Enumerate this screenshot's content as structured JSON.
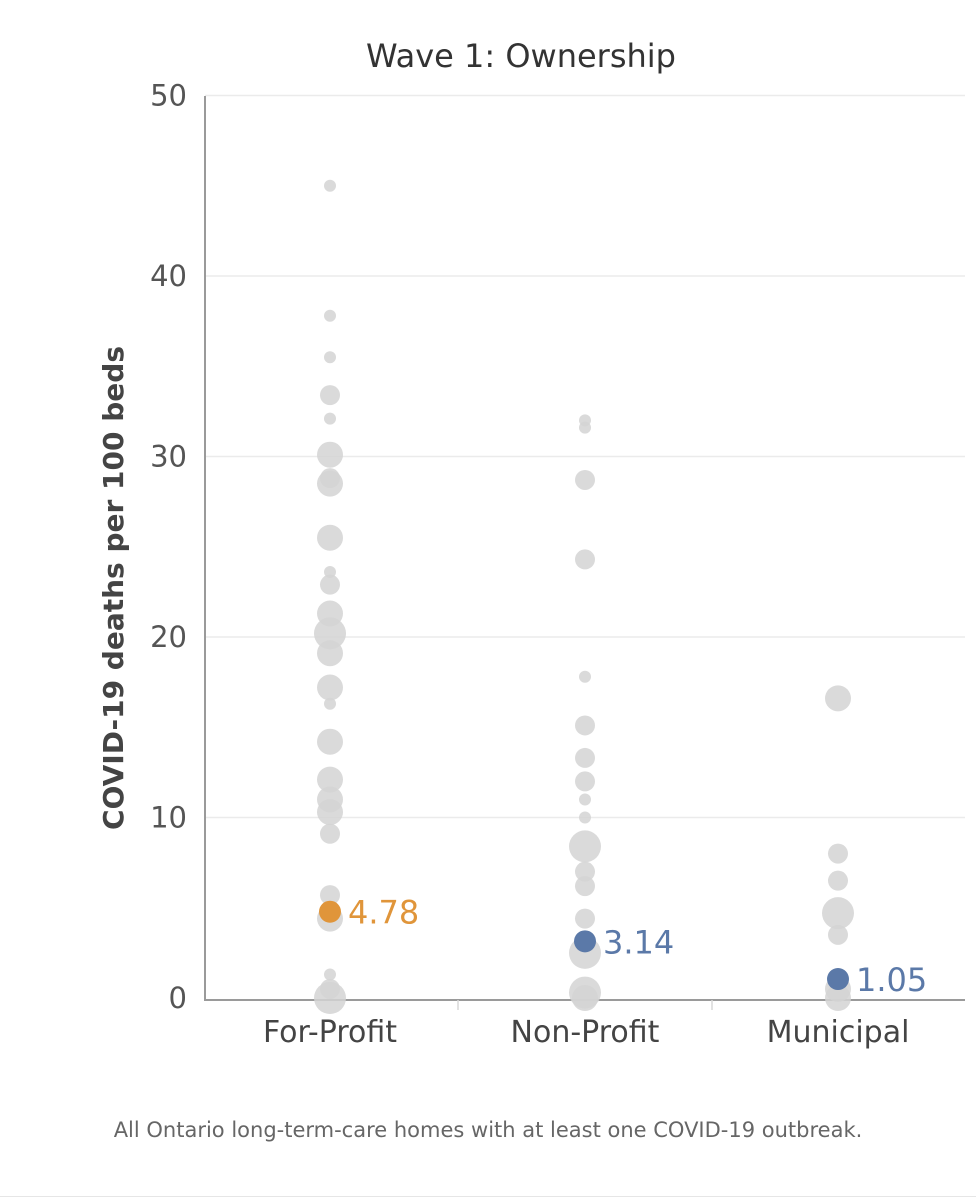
{
  "chart_data": {
    "type": "scatter",
    "title": "Wave 1: Ownership",
    "xlabel": "",
    "ylabel": "COVID-19 deaths per 100 beds",
    "ylim": [
      0,
      50
    ],
    "yticks": [
      0,
      10,
      20,
      30,
      40,
      50
    ],
    "grid": true,
    "categories": [
      "For-Profit",
      "Non-Profit",
      "Municipal"
    ],
    "dot_color": "#d3d3d3",
    "series": [
      {
        "category": "For-Profit",
        "median": 4.78,
        "median_label": "4.78",
        "median_color": "#e0953a",
        "points": [
          {
            "y": 45,
            "w": 1
          },
          {
            "y": 37.8,
            "w": 1
          },
          {
            "y": 35.5,
            "w": 1
          },
          {
            "y": 33.4,
            "w": 2
          },
          {
            "y": 32.1,
            "w": 1
          },
          {
            "y": 30.1,
            "w": 3
          },
          {
            "y": 28.8,
            "w": 2
          },
          {
            "y": 28.5,
            "w": 3
          },
          {
            "y": 25.5,
            "w": 3
          },
          {
            "y": 23.6,
            "w": 1
          },
          {
            "y": 22.9,
            "w": 2
          },
          {
            "y": 21.3,
            "w": 3
          },
          {
            "y": 20.2,
            "w": 4
          },
          {
            "y": 19.1,
            "w": 3
          },
          {
            "y": 17.2,
            "w": 3
          },
          {
            "y": 16.3,
            "w": 1
          },
          {
            "y": 14.2,
            "w": 3
          },
          {
            "y": 12.1,
            "w": 3
          },
          {
            "y": 11.0,
            "w": 3
          },
          {
            "y": 10.3,
            "w": 3
          },
          {
            "y": 9.1,
            "w": 2
          },
          {
            "y": 5.7,
            "w": 2
          },
          {
            "y": 4.4,
            "w": 3
          },
          {
            "y": 1.3,
            "w": 1
          },
          {
            "y": 0.5,
            "w": 2
          },
          {
            "y": 0,
            "w": 4
          }
        ]
      },
      {
        "category": "Non-Profit",
        "median": 3.14,
        "median_label": "3.14",
        "median_color": "#5b79a8",
        "points": [
          {
            "y": 32.0,
            "w": 1
          },
          {
            "y": 31.6,
            "w": 1
          },
          {
            "y": 28.7,
            "w": 2
          },
          {
            "y": 24.3,
            "w": 2
          },
          {
            "y": 17.8,
            "w": 1
          },
          {
            "y": 15.1,
            "w": 2
          },
          {
            "y": 13.3,
            "w": 2
          },
          {
            "y": 12.0,
            "w": 2
          },
          {
            "y": 11.0,
            "w": 1
          },
          {
            "y": 10.0,
            "w": 1
          },
          {
            "y": 8.4,
            "w": 4
          },
          {
            "y": 7.0,
            "w": 2
          },
          {
            "y": 6.2,
            "w": 2
          },
          {
            "y": 4.4,
            "w": 2
          },
          {
            "y": 2.5,
            "w": 4
          },
          {
            "y": 0.3,
            "w": 4
          },
          {
            "y": 0,
            "w": 3
          }
        ]
      },
      {
        "category": "Municipal",
        "median": 1.05,
        "median_label": "1.05",
        "median_color": "#5b79a8",
        "points": [
          {
            "y": 16.6,
            "w": 3
          },
          {
            "y": 8.0,
            "w": 2
          },
          {
            "y": 6.5,
            "w": 2
          },
          {
            "y": 4.7,
            "w": 4
          },
          {
            "y": 3.5,
            "w": 2
          },
          {
            "y": 0.5,
            "w": 3
          },
          {
            "y": 0,
            "w": 3
          }
        ]
      }
    ]
  },
  "footnote": "All Ontario long-term-care homes with at least one COVID-19 outbreak."
}
